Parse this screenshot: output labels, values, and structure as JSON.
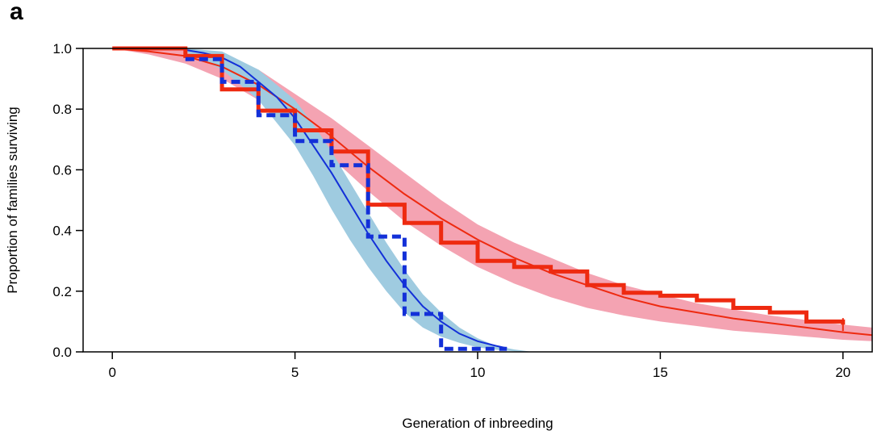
{
  "panel_label": "a",
  "colors": {
    "red": "#ee2a10",
    "red_band": "#f4a3b2",
    "blue": "#1330d8",
    "blue_band": "#9fcbe0"
  },
  "chart_data": {
    "type": "line",
    "title": "",
    "xlabel": "Generation of inbreeding",
    "ylabel": "Proportion of families surviving",
    "xlim": [
      -0.8,
      20.8
    ],
    "ylim": [
      0,
      1
    ],
    "xticks": [
      0,
      5,
      10,
      15,
      20
    ],
    "xtick_labels": [
      "0",
      "5",
      "10",
      "15",
      "20"
    ],
    "yticks": [
      0,
      0.2,
      0.4,
      0.6,
      0.8,
      1.0
    ],
    "ytick_labels": [
      "0.0",
      "0.2",
      "0.4",
      "0.6",
      "0.8",
      "1.0"
    ],
    "series": [
      {
        "style": "band",
        "color": "#f4a3b2",
        "x": [
          0,
          1,
          2,
          3,
          4,
          5,
          6,
          7,
          8,
          9,
          10,
          11,
          12,
          13,
          14,
          15,
          16,
          17,
          18,
          19,
          20,
          20.8
        ],
        "lower": [
          1.0,
          0.98,
          0.95,
          0.9,
          0.83,
          0.74,
          0.64,
          0.53,
          0.43,
          0.35,
          0.28,
          0.225,
          0.18,
          0.145,
          0.12,
          0.1,
          0.085,
          0.07,
          0.06,
          0.05,
          0.04,
          0.035
        ],
        "upper": [
          1.0,
          1.0,
          1.0,
          0.98,
          0.93,
          0.85,
          0.77,
          0.68,
          0.59,
          0.5,
          0.42,
          0.36,
          0.31,
          0.26,
          0.22,
          0.19,
          0.16,
          0.14,
          0.12,
          0.105,
          0.09,
          0.08
        ]
      },
      {
        "style": "band",
        "color": "#9fcbe0",
        "x": [
          2,
          3,
          4,
          5,
          5.5,
          6,
          6.5,
          7,
          7.5,
          8,
          8.5,
          9,
          9.5,
          10,
          10.5,
          11,
          11.5
        ],
        "lower": [
          0.99,
          0.93,
          0.83,
          0.68,
          0.58,
          0.47,
          0.37,
          0.28,
          0.2,
          0.13,
          0.08,
          0.05,
          0.03,
          0.015,
          0.007,
          0.002,
          0.0
        ],
        "upper": [
          1.0,
          0.99,
          0.93,
          0.83,
          0.75,
          0.66,
          0.56,
          0.46,
          0.36,
          0.27,
          0.19,
          0.13,
          0.08,
          0.045,
          0.02,
          0.008,
          0.0
        ]
      },
      {
        "style": "line",
        "color": "#ee2a10",
        "width": 2,
        "x": [
          0,
          1,
          2,
          3,
          4,
          5,
          6,
          7,
          8,
          9,
          10,
          11,
          12,
          13,
          14,
          15,
          16,
          17,
          18,
          19,
          20,
          20.8
        ],
        "y": [
          1.0,
          0.99,
          0.975,
          0.94,
          0.88,
          0.8,
          0.71,
          0.61,
          0.52,
          0.44,
          0.37,
          0.31,
          0.26,
          0.22,
          0.18,
          0.15,
          0.13,
          0.11,
          0.095,
          0.08,
          0.065,
          0.055
        ]
      },
      {
        "style": "line",
        "color": "#1330d8",
        "width": 2,
        "x": [
          2,
          2.5,
          3,
          3.5,
          4,
          4.5,
          5,
          5.5,
          6,
          6.5,
          7,
          7.5,
          8,
          8.5,
          9,
          9.5,
          10,
          10.5,
          10.8
        ],
        "y": [
          0.995,
          0.985,
          0.97,
          0.94,
          0.89,
          0.84,
          0.77,
          0.68,
          0.59,
          0.49,
          0.39,
          0.3,
          0.22,
          0.15,
          0.1,
          0.06,
          0.035,
          0.02,
          0.012
        ]
      },
      {
        "style": "step",
        "color": "#ee2a10",
        "width": 5,
        "x": [
          0,
          2,
          3,
          4,
          5,
          6,
          7,
          8,
          9,
          10,
          11,
          12,
          13,
          14,
          15,
          16,
          17,
          18,
          19,
          20
        ],
        "y": [
          1.0,
          0.975,
          0.865,
          0.795,
          0.73,
          0.66,
          0.485,
          0.425,
          0.36,
          0.3,
          0.28,
          0.265,
          0.22,
          0.195,
          0.185,
          0.17,
          0.145,
          0.13,
          0.1,
          0.09
        ]
      },
      {
        "style": "dashed-step",
        "color": "#1330d8",
        "width": 5,
        "x": [
          2,
          3,
          4,
          5,
          6,
          7,
          8,
          9,
          10,
          10.8
        ],
        "y": [
          0.965,
          0.89,
          0.78,
          0.695,
          0.615,
          0.38,
          0.125,
          0.01,
          0.01,
          0.01
        ]
      }
    ]
  }
}
